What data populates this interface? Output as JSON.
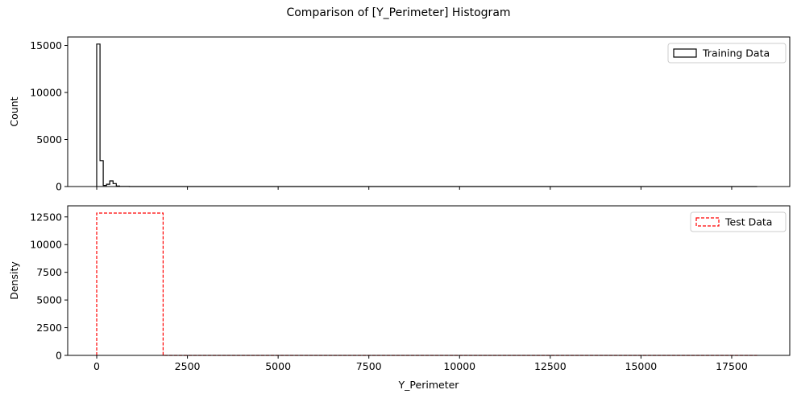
{
  "figure": {
    "title": "Comparison of [Y_Perimeter] Histogram"
  },
  "chart_data": [
    {
      "type": "bar",
      "variant": "step-histogram",
      "ylabel": "Count",
      "xlabel": "",
      "xlim": [
        -800,
        19100
      ],
      "ylim": [
        0,
        15900
      ],
      "yticks": [
        0,
        5000,
        10000,
        15000
      ],
      "ytick_labels": [
        "0",
        "5000",
        "10000",
        "15000"
      ],
      "xticks": [
        0,
        2500,
        5000,
        7500,
        10000,
        12500,
        15000,
        17500
      ],
      "xtick_labels_visible": false,
      "legend": {
        "label": "Training Data",
        "placement": "top-right"
      },
      "style": {
        "edge_color": "#000000",
        "dashed": false
      },
      "bins": [
        {
          "x0": 0,
          "x1": 90,
          "count": 15150
        },
        {
          "x0": 90,
          "x1": 180,
          "count": 2750
        },
        {
          "x0": 180,
          "x1": 270,
          "count": 120
        },
        {
          "x0": 270,
          "x1": 360,
          "count": 250
        },
        {
          "x0": 360,
          "x1": 450,
          "count": 600
        },
        {
          "x0": 450,
          "x1": 540,
          "count": 320
        },
        {
          "x0": 540,
          "x1": 630,
          "count": 60
        },
        {
          "x0": 630,
          "x1": 900,
          "count": 20
        },
        {
          "x0": 900,
          "x1": 18200,
          "count": 0
        }
      ]
    },
    {
      "type": "bar",
      "variant": "step-histogram",
      "ylabel": "Density",
      "xlabel": "Y_Perimeter",
      "xlim": [
        -800,
        19100
      ],
      "ylim": [
        0,
        13500
      ],
      "yticks": [
        0,
        2500,
        5000,
        7500,
        10000,
        12500
      ],
      "ytick_labels": [
        "0",
        "2500",
        "5000",
        "7500",
        "10000",
        "12500"
      ],
      "xticks": [
        0,
        2500,
        5000,
        7500,
        10000,
        12500,
        15000,
        17500
      ],
      "xtick_labels": [
        "0",
        "2500",
        "5000",
        "7500",
        "10000",
        "12500",
        "15000",
        "17500"
      ],
      "legend": {
        "label": "Test Data",
        "placement": "top-right"
      },
      "style": {
        "edge_color": "#ff0000",
        "dashed": true
      },
      "bins": [
        {
          "x0": 0,
          "x1": 1830,
          "count": 12850
        },
        {
          "x0": 1830,
          "x1": 18200,
          "count": 0
        }
      ]
    }
  ]
}
